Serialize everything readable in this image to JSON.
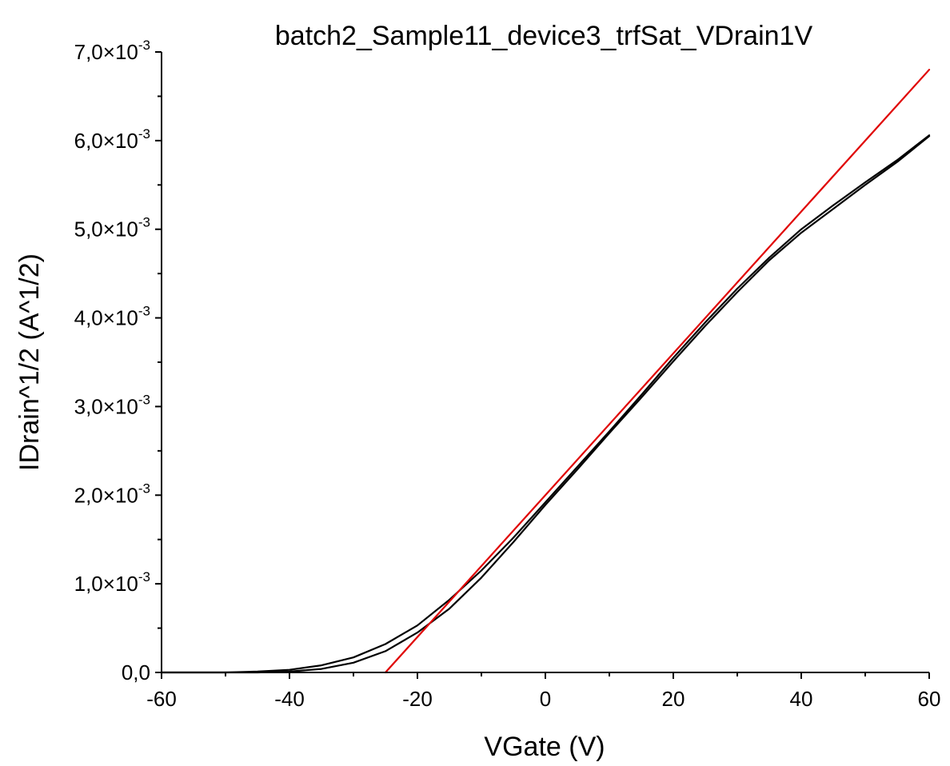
{
  "chart_data": {
    "type": "line",
    "title": "batch2_Sample11_device3_trfSat_VDrain1V",
    "xlabel": "VGate (V)",
    "ylabel": "IDrain^1/2 (A^1/2)",
    "xlim": [
      -60,
      60
    ],
    "ylim": [
      0,
      0.007
    ],
    "x_ticks": [
      {
        "value": -60,
        "label": "-60"
      },
      {
        "value": -40,
        "label": "-40"
      },
      {
        "value": -20,
        "label": "-20"
      },
      {
        "value": 0,
        "label": "0"
      },
      {
        "value": 20,
        "label": "20"
      },
      {
        "value": 40,
        "label": "40"
      },
      {
        "value": 60,
        "label": "60"
      }
    ],
    "y_ticks": [
      {
        "value": 0,
        "mantissa": "0,0",
        "exp": ""
      },
      {
        "value": 0.001,
        "mantissa": "1,0×10",
        "exp": "-3"
      },
      {
        "value": 0.002,
        "mantissa": "2,0×10",
        "exp": "-3"
      },
      {
        "value": 0.003,
        "mantissa": "3,0×10",
        "exp": "-3"
      },
      {
        "value": 0.004,
        "mantissa": "4,0×10",
        "exp": "-3"
      },
      {
        "value": 0.005,
        "mantissa": "5,0×10",
        "exp": "-3"
      },
      {
        "value": 0.006,
        "mantissa": "6,0×10",
        "exp": "-3"
      },
      {
        "value": 0.007,
        "mantissa": "7,0×10",
        "exp": "-3"
      }
    ],
    "grid": false,
    "series": [
      {
        "color": "#000000",
        "x": [
          -60,
          -50,
          -45,
          -40,
          -35,
          -30,
          -25,
          -20,
          -15,
          -10,
          -5,
          0,
          5,
          10,
          15,
          20,
          25,
          30,
          35,
          40,
          45,
          50,
          55,
          60
        ],
        "y": [
          0,
          0,
          1e-05,
          3e-05,
          8e-05,
          0.00017,
          0.00032,
          0.00053,
          0.00082,
          0.00115,
          0.00152,
          0.00192,
          0.00232,
          0.00272,
          0.00313,
          0.00355,
          0.00395,
          0.00433,
          0.00468,
          0.005,
          0.00527,
          0.00553,
          0.00578,
          0.00606
        ]
      },
      {
        "color": "#000000",
        "x": [
          -60,
          -45,
          -40,
          -35,
          -30,
          -25,
          -20,
          -15,
          -10,
          -5,
          0,
          5,
          10,
          15,
          20,
          25,
          30,
          35,
          40,
          45,
          50,
          55,
          60
        ],
        "y": [
          0,
          0,
          1e-05,
          4e-05,
          0.00011,
          0.00024,
          0.00045,
          0.00072,
          0.00107,
          0.00147,
          0.00189,
          0.00229,
          0.0027,
          0.0031,
          0.00351,
          0.00391,
          0.00429,
          0.00465,
          0.00496,
          0.00523,
          0.0055,
          0.00576,
          0.00605
        ]
      },
      {
        "color": "#e00000",
        "x": [
          -25,
          60
        ],
        "y": [
          0,
          0.0068
        ]
      }
    ]
  }
}
